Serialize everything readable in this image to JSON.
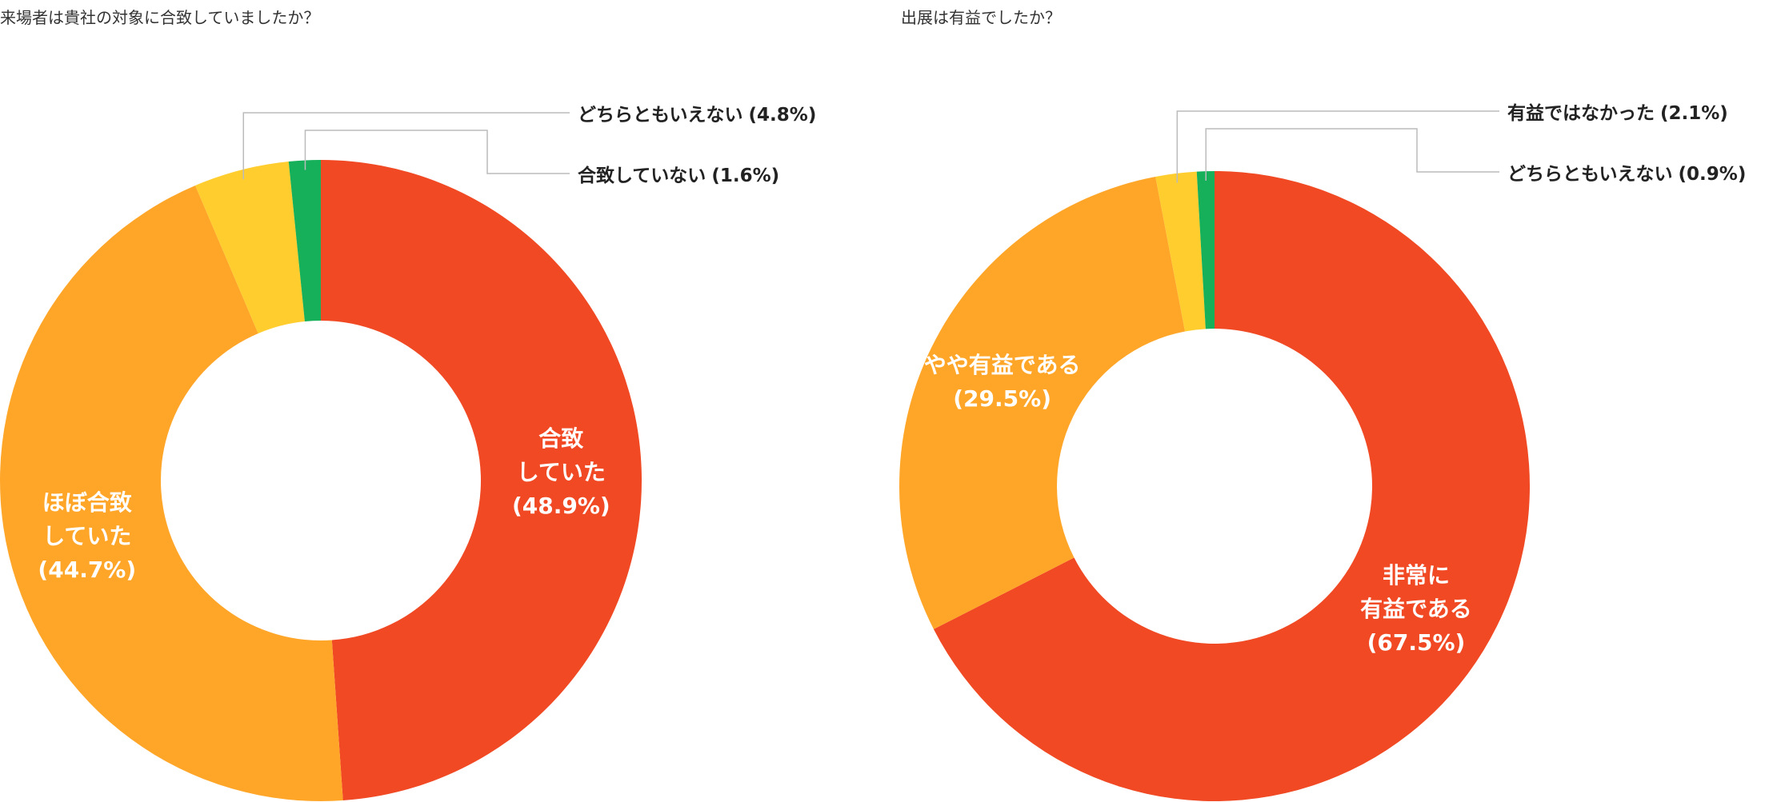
{
  "chart_data": [
    {
      "type": "donut",
      "title": "来場者は貴社の対象に合致していましたか？",
      "categories": [
        "合致\nしていた",
        "ほぼ合致\nしていた",
        "どちらともいえない",
        "合致していない"
      ],
      "values": [
        48.9,
        44.7,
        4.8,
        1.6
      ],
      "value_labels": [
        "(48.9%)",
        "(44.7%)",
        "(4.8%)",
        "(1.6%)"
      ],
      "colors": [
        "#f04923",
        "#ffa629",
        "#ffcd2d",
        "#17b05a"
      ]
    },
    {
      "type": "donut",
      "title": "出展は有益でしたか？",
      "categories": [
        "非常に\n有益である",
        "やや有益である",
        "有益ではなかった",
        "どちらともいえない"
      ],
      "values": [
        67.5,
        29.5,
        2.1,
        0.9
      ],
      "value_labels": [
        "(67.5%)",
        "(29.5%)",
        "(2.1%)",
        "(0.9%)"
      ],
      "colors": [
        "#f04923",
        "#ffa629",
        "#ffcd2d",
        "#17b05a"
      ]
    }
  ]
}
